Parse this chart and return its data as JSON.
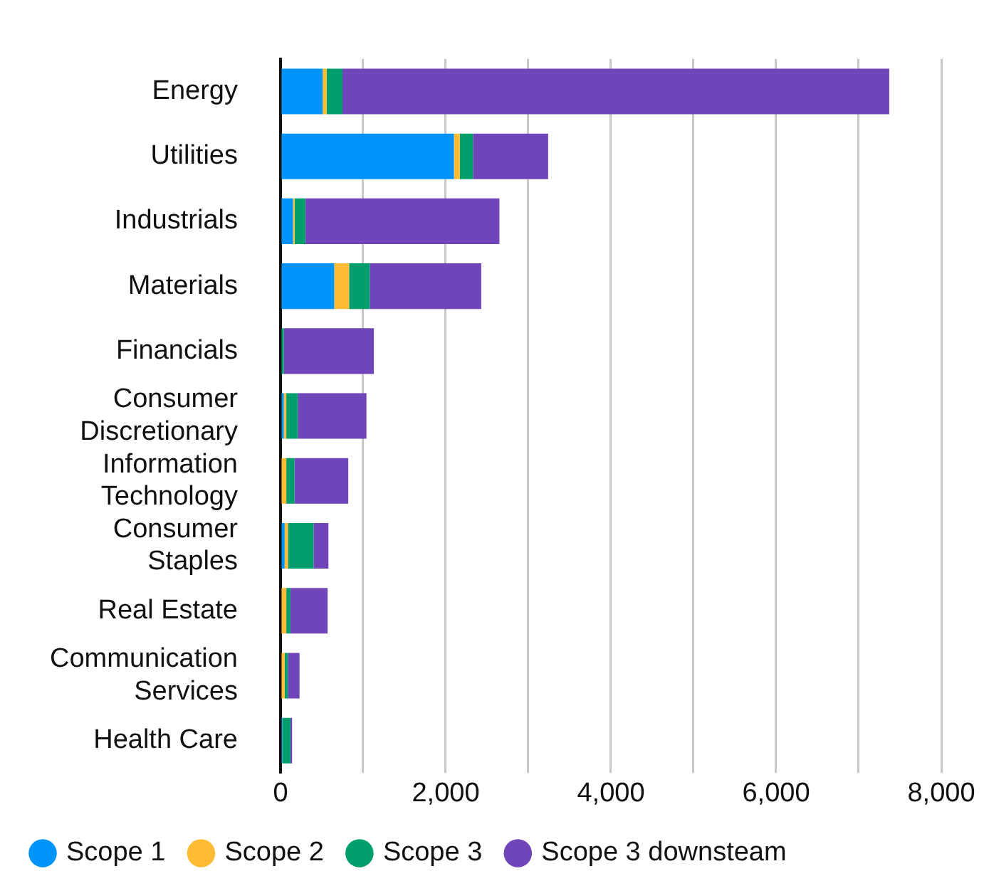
{
  "chart_data": {
    "type": "bar",
    "orientation": "horizontal",
    "stacked": true,
    "categories": [
      "Energy",
      "Utilities",
      "Industrials",
      "Materials",
      "Financials",
      "Consumer Discretionary",
      "Information Technology",
      "Consumer Staples",
      "Real Estate",
      "Communication Services",
      "Health Care"
    ],
    "series": [
      {
        "name": "Scope 1",
        "color": "#0094fb",
        "values": [
          510,
          2100,
          150,
          650,
          0,
          40,
          0,
          50,
          null,
          null,
          20
        ]
      },
      {
        "name": "Scope 2",
        "color": "#ffbb33",
        "values": [
          50,
          70,
          20,
          180,
          0,
          30,
          70,
          40,
          70,
          50,
          0
        ]
      },
      {
        "name": "Scope 3",
        "color": "#009e6d",
        "values": [
          190,
          160,
          130,
          250,
          40,
          140,
          100,
          310,
          50,
          40,
          100
        ]
      },
      {
        "name": "Scope 3 downsteam",
        "color": "#6f45b9",
        "values": [
          6620,
          910,
          2350,
          1350,
          1090,
          830,
          650,
          180,
          450,
          140,
          20
        ]
      }
    ],
    "xlim": [
      0,
      8000
    ],
    "xticks": [
      0,
      {
        "value": 1000,
        "label": null
      },
      {
        "value": 2000,
        "label": "2,000"
      },
      {
        "value": 3000,
        "label": null
      },
      {
        "value": 4000,
        "label": "4,000"
      },
      {
        "value": 5000,
        "label": null
      },
      {
        "value": 6000,
        "label": "6,000"
      },
      {
        "value": 7000,
        "label": null
      },
      {
        "value": 8000,
        "label": "8,000"
      }
    ],
    "grid": "x",
    "legend": "bottom"
  }
}
